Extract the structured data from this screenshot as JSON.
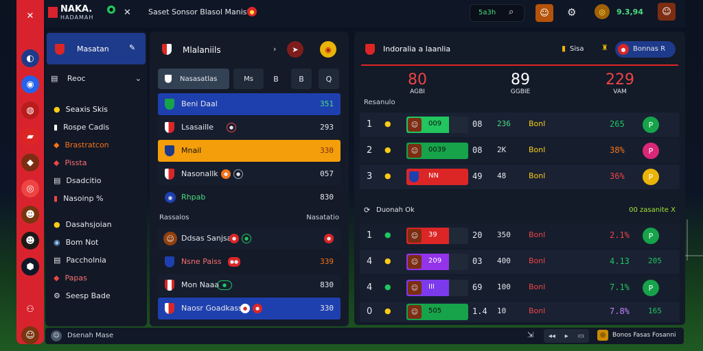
{
  "app": {
    "name": "NAKA.",
    "sub": "HADAMAH"
  },
  "topbar": {
    "title": "Saset Sonsor Blasol Manistin",
    "search_label": "5a3h",
    "score": "9.3,94"
  },
  "sidebar": {
    "header": "Masatan",
    "section": "Reoc",
    "items": [
      {
        "label": "Seaxis Skis"
      },
      {
        "label": "Rospe Cadis"
      },
      {
        "label": "Brastratcon"
      },
      {
        "label": "Pissta"
      },
      {
        "label": "Dsadcitio"
      },
      {
        "label": "Nasoinp %"
      },
      {
        "label": "Dasahsjoian"
      },
      {
        "label": "Bom Not"
      },
      {
        "label": "Paccholnia"
      },
      {
        "label": "Papas"
      },
      {
        "label": "Seesp Bade"
      }
    ],
    "footer": "Dsenah Mase"
  },
  "middle": {
    "title": "Mlalaniils",
    "tabs": [
      "Nasasatlas",
      "Ms",
      "B",
      "B",
      "Q"
    ],
    "rows1": [
      {
        "name": "Beni Daal",
        "val": "351"
      },
      {
        "name": "Lsasaille",
        "val": "293"
      },
      {
        "name": "Mnail",
        "val": "330"
      },
      {
        "name": "Nasonallk",
        "val": "057"
      },
      {
        "name": "Rhpab",
        "val": "830"
      }
    ],
    "section_left": "Rassalos",
    "section_right": "Nasatatio",
    "rows2": [
      {
        "name": "Ddsas Sanjsan",
        "val": ""
      },
      {
        "name": "Nsne Paiss",
        "val": "339"
      },
      {
        "name": "Mon Naaa",
        "val": "830"
      },
      {
        "name": "Naosr Goadkass",
        "val": "330"
      }
    ]
  },
  "right": {
    "title": "Indoralia a laanlia",
    "badge_label": "Sisa",
    "button_label": "Bonnas R",
    "stats": [
      {
        "value": "80",
        "label": "AGBI",
        "color": "#ef4444"
      },
      {
        "value": "89",
        "label": "GGBIE",
        "color": "#ffffff"
      },
      {
        "value": "229",
        "label": "VAM",
        "color": "#ef4444"
      }
    ],
    "section1": "Resanulo",
    "table1": [
      {
        "rank": "1",
        "bar_val": "009",
        "bar_color": "#22c55e",
        "score": "08",
        "points": "236",
        "tag": "Bonl",
        "pct": "265",
        "pct_color": "#22c55e",
        "end_icon": "P",
        "end_color": "#16a34a"
      },
      {
        "rank": "2",
        "bar_val": "0039",
        "bar_color": "#16a34a",
        "score": "08",
        "points": "2K",
        "tag": "Bonl",
        "pct": "38%",
        "pct_color": "#f97316",
        "end_icon": "P",
        "end_color": "#db2777"
      },
      {
        "rank": "3",
        "bar_val": "NN",
        "bar_color": "#dc2626",
        "score": "49",
        "points": "48",
        "tag": "Bonl",
        "pct": "36%",
        "pct_color": "#ef4444",
        "end_icon": "P",
        "end_color": "#eab308"
      }
    ],
    "section2_left": "Duonah Ok",
    "section2_right": "00 zasanite X",
    "table2": [
      {
        "rank": "1",
        "bar_val": "39",
        "bar_color": "#dc2626",
        "score": "20",
        "points": "350",
        "tag": "Bonl",
        "pct": "2.1%",
        "pct_color": "#ef4444",
        "extra": "",
        "end_icon": "P",
        "end_color": "#16a34a"
      },
      {
        "rank": "4",
        "bar_val": "209",
        "bar_color": "#9333ea",
        "score": "03",
        "points": "400",
        "tag": "Bonl",
        "pct": "4.13",
        "pct_color": "#22c55e",
        "extra": "205",
        "end_icon": "",
        "end_color": ""
      },
      {
        "rank": "4",
        "bar_val": "III",
        "bar_color": "#7c3aed",
        "score": "69",
        "points": "100",
        "tag": "Bonl",
        "pct": "7.1%",
        "pct_color": "#22c55e",
        "extra": "",
        "end_icon": "P",
        "end_color": "#16a34a"
      },
      {
        "rank": "0",
        "bar_val": "505",
        "bar_color": "#16a34a",
        "score": "1.4",
        "points": "10",
        "tag": "Bonl",
        "pct": "7.8%",
        "pct_color": "#c084fc",
        "extra": "165",
        "end_icon": "",
        "end_color": ""
      }
    ],
    "footer": "Bonos Fasas Fosanni"
  }
}
